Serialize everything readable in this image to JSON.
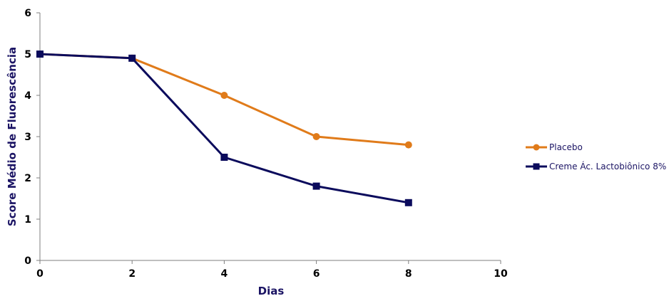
{
  "chart_data": {
    "type": "line",
    "title": "",
    "xlabel": "Dias",
    "ylabel": "Score Médio de Fluorescência",
    "xlim": [
      0,
      10
    ],
    "ylim": [
      0,
      6
    ],
    "xticks": [
      0,
      2,
      4,
      6,
      8,
      10
    ],
    "yticks": [
      0,
      1,
      2,
      3,
      4,
      5,
      6
    ],
    "grid": false,
    "legend_position": "right",
    "series": [
      {
        "name": "Placebo",
        "color": "#e07b1a",
        "marker": "circle",
        "x": [
          0,
          2,
          4,
          6,
          8
        ],
        "y": [
          5,
          4.9,
          4,
          3,
          2.8
        ]
      },
      {
        "name": "Creme Ác. Lactobiônico 8%",
        "color": "#0b0b5c",
        "marker": "square",
        "x": [
          0,
          2,
          4,
          6,
          8
        ],
        "y": [
          5,
          4.9,
          2.5,
          1.8,
          1.4
        ]
      }
    ],
    "axis_color": "#7f7f7f"
  }
}
